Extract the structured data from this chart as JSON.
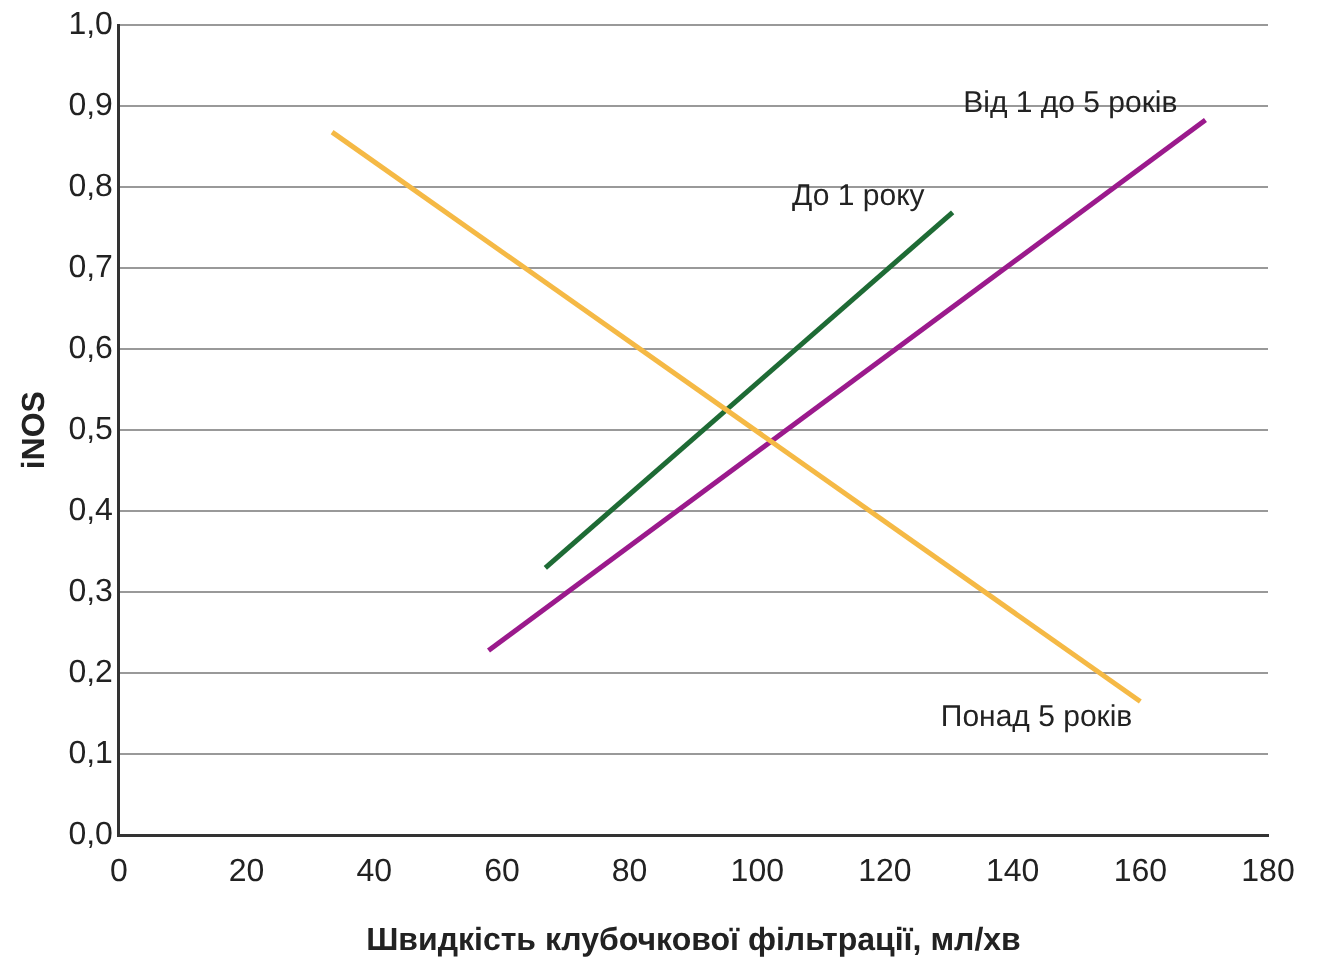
{
  "chart_data": {
    "type": "line",
    "xlabel": "Швидкість клубочкової фільтрації, мл/хв",
    "ylabel": "iNOS",
    "series": [
      {
        "name": "Понад 5 років",
        "color": "#f5b945",
        "x": [
          33.4,
          160
        ],
        "values": [
          0.868,
          0.165
        ]
      },
      {
        "name": "До 1 року",
        "color": "#1e6b35",
        "x": [
          66.8,
          130.6
        ],
        "values": [
          0.33,
          0.769
        ]
      },
      {
        "name": "Від 1 до 5 років",
        "color": "#9b1a8c",
        "x": [
          57.9,
          170.2
        ],
        "values": [
          0.228,
          0.883
        ]
      }
    ],
    "xlim": [
      0,
      180
    ],
    "xticks": [
      0,
      20,
      40,
      60,
      80,
      100,
      120,
      140,
      160,
      180
    ],
    "ylim": [
      0,
      1
    ],
    "yticks": [
      {
        "value": 0,
        "label": "0,0"
      },
      {
        "value": 0.1,
        "label": "0,1"
      },
      {
        "value": 0.2,
        "label": "0,2"
      },
      {
        "value": 0.3,
        "label": "0,3"
      },
      {
        "value": 0.4,
        "label": "0,4"
      },
      {
        "value": 0.5,
        "label": "0,5"
      },
      {
        "value": 0.6,
        "label": "0,6"
      },
      {
        "value": 0.7,
        "label": "0,7"
      },
      {
        "value": 0.8,
        "label": "0,8"
      },
      {
        "value": 0.9,
        "label": "0,9"
      },
      {
        "value": 1,
        "label": "1,0"
      }
    ],
    "grid": "y",
    "legend": false,
    "marker": "none",
    "line_style": "solid"
  }
}
